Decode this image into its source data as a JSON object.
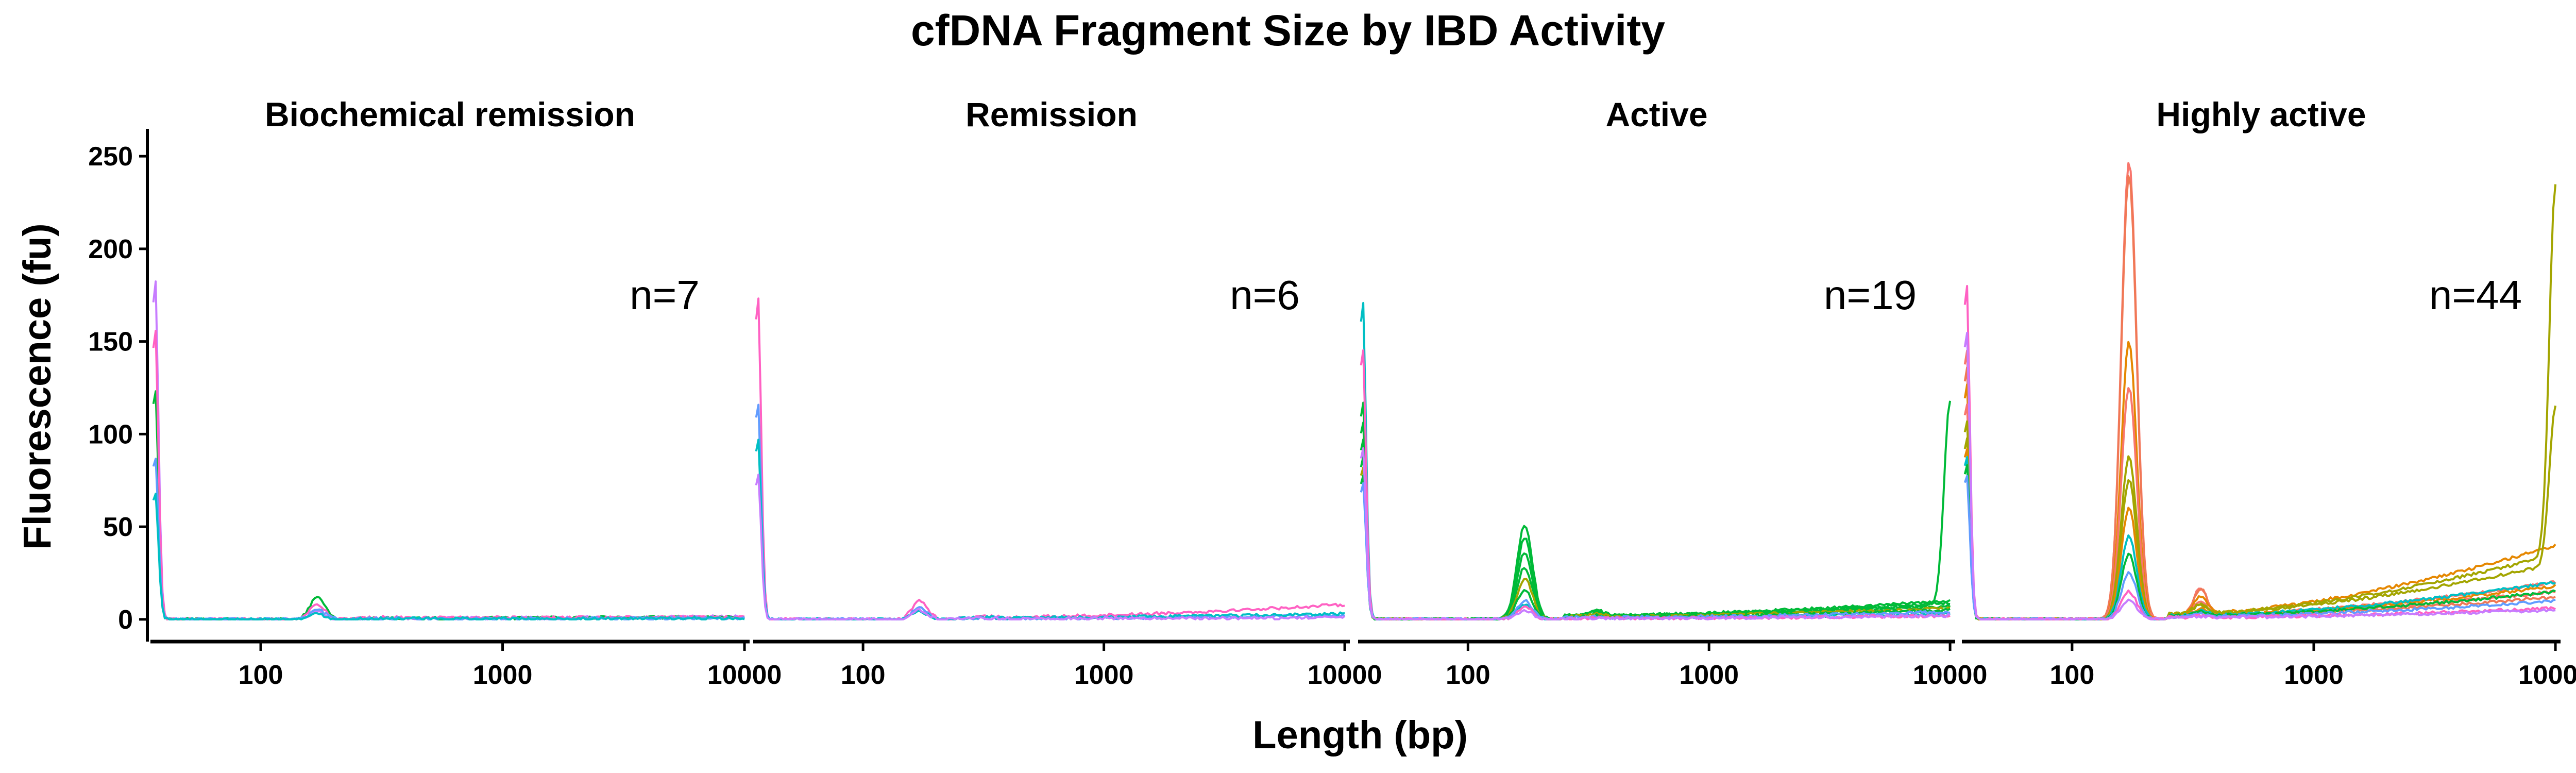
{
  "chart_data": {
    "type": "line",
    "title": "cfDNA Fragment Size by IBD Activity",
    "xlabel": "Length (bp)",
    "ylabel": "Fluorescence (fu)",
    "x_scale": "log10",
    "xlim": [
      35,
      10500
    ],
    "ylim": [
      -12,
      262
    ],
    "x_ticks": [
      100,
      1000,
      10000
    ],
    "x_tick_labels": [
      "100",
      "1000",
      "10000"
    ],
    "y_ticks": [
      0,
      50,
      100,
      150,
      200,
      250
    ],
    "y_tick_labels": [
      "0",
      "50",
      "100",
      "150",
      "200",
      "250"
    ],
    "grid": false,
    "colors": {
      "red": "#F8766D",
      "orange": "#E58700",
      "olive": "#A3A500",
      "green": "#00BA38",
      "teal": "#00BF7D",
      "cyan": "#00BFC4",
      "blue": "#619CFF",
      "purple": "#C77CFF",
      "pink": "#FF61C3",
      "salmon": "#F07855"
    },
    "panels": [
      {
        "title": "Biochemical remission",
        "n_label": "n=7",
        "series": [
          {
            "color": "#C77CFF",
            "marker_peak": 187,
            "nuc_peak": 4,
            "tail_start": 0.5,
            "tail_end": 1.5,
            "upper_peak": 0
          },
          {
            "color": "#00BA38",
            "marker_peak": 127,
            "nuc_peak": 12,
            "tail_start": 0.5,
            "tail_end": 1.5,
            "upper_peak": 0
          },
          {
            "color": "#FF61C3",
            "marker_peak": 160,
            "nuc_peak": 8,
            "tail_start": 0.8,
            "tail_end": 1.2,
            "upper_peak": 0
          },
          {
            "color": "#619CFF",
            "marker_peak": 90,
            "nuc_peak": 5,
            "tail_start": 0.3,
            "tail_end": 0.6,
            "upper_peak": 0
          },
          {
            "color": "#00BFC4",
            "marker_peak": 70,
            "nuc_peak": 3,
            "tail_start": 0.3,
            "tail_end": 0.5,
            "upper_peak": 0
          }
        ]
      },
      {
        "title": "Remission",
        "n_label": "n=6",
        "series": [
          {
            "color": "#FF61C3",
            "marker_peak": 178,
            "nuc_peak": 10,
            "tail_start": 1,
            "tail_end": 8,
            "upper_peak": 0
          },
          {
            "color": "#619CFF",
            "marker_peak": 120,
            "nuc_peak": 6,
            "tail_start": 0.5,
            "tail_end": 2,
            "upper_peak": 0
          },
          {
            "color": "#00BFC4",
            "marker_peak": 100,
            "nuc_peak": 4,
            "tail_start": 0.8,
            "tail_end": 3,
            "upper_peak": 0
          },
          {
            "color": "#C77CFF",
            "marker_peak": 80,
            "nuc_peak": 5,
            "tail_start": 0.4,
            "tail_end": 1,
            "upper_peak": 0
          }
        ]
      },
      {
        "title": "Active",
        "n_label": "n=19",
        "series": [
          {
            "color": "#00BFC4",
            "marker_peak": 176,
            "nuc_peak": 8,
            "tail_start": 1,
            "tail_end": 3,
            "upper_peak": 0
          },
          {
            "color": "#00BA38",
            "marker_peak": 120,
            "nuc_peak": 51,
            "tail_start": 2,
            "tail_end": 8,
            "upper_peak": 110
          },
          {
            "color": "#00BA38",
            "marker_peak": 110,
            "nuc_peak": 44,
            "tail_start": 2,
            "tail_end": 10,
            "upper_peak": 0
          },
          {
            "color": "#00BA38",
            "marker_peak": 100,
            "nuc_peak": 36,
            "tail_start": 2,
            "tail_end": 9,
            "upper_peak": 0
          },
          {
            "color": "#00BA38",
            "marker_peak": 90,
            "nuc_peak": 28,
            "tail_start": 1.5,
            "tail_end": 7,
            "upper_peak": 0
          },
          {
            "color": "#A3A500",
            "marker_peak": 85,
            "nuc_peak": 22,
            "tail_start": 1.5,
            "tail_end": 6,
            "upper_peak": 0
          },
          {
            "color": "#00BA38",
            "marker_peak": 80,
            "nuc_peak": 16,
            "tail_start": 1,
            "tail_end": 5,
            "upper_peak": 0
          },
          {
            "color": "#619CFF",
            "marker_peak": 75,
            "nuc_peak": 10,
            "tail_start": 1,
            "tail_end": 4,
            "upper_peak": 0
          },
          {
            "color": "#FF61C3",
            "marker_peak": 150,
            "nuc_peak": 7,
            "tail_start": 0.5,
            "tail_end": 2,
            "upper_peak": 0
          },
          {
            "color": "#C77CFF",
            "marker_peak": 95,
            "nuc_peak": 5,
            "tail_start": 0.5,
            "tail_end": 2,
            "upper_peak": 0
          }
        ]
      },
      {
        "title": "Highly active",
        "n_label": "n=44",
        "series": [
          {
            "color": "#F8766D",
            "marker_peak": 150,
            "nuc_peak": 247,
            "tail_start": 2,
            "tail_end": 15,
            "upper_peak": 0
          },
          {
            "color": "#F07855",
            "marker_peak": 140,
            "nuc_peak": 240,
            "tail_start": 2,
            "tail_end": 12,
            "upper_peak": 0
          },
          {
            "color": "#E58700",
            "marker_peak": 130,
            "nuc_peak": 150,
            "tail_start": 3,
            "tail_end": 40,
            "upper_peak": 0
          },
          {
            "color": "#F8766D",
            "marker_peak": 120,
            "nuc_peak": 125,
            "tail_start": 2,
            "tail_end": 20,
            "upper_peak": 0
          },
          {
            "color": "#A3A500",
            "marker_peak": 110,
            "nuc_peak": 88,
            "tail_start": 3,
            "tail_end": 35,
            "upper_peak": 200
          },
          {
            "color": "#A3A500",
            "marker_peak": 100,
            "nuc_peak": 75,
            "tail_start": 3,
            "tail_end": 30,
            "upper_peak": 85
          },
          {
            "color": "#E58700",
            "marker_peak": 95,
            "nuc_peak": 60,
            "tail_start": 2,
            "tail_end": 18,
            "upper_peak": 0
          },
          {
            "color": "#00BFC4",
            "marker_peak": 90,
            "nuc_peak": 45,
            "tail_start": 2,
            "tail_end": 20,
            "upper_peak": 0
          },
          {
            "color": "#00BA38",
            "marker_peak": 85,
            "nuc_peak": 35,
            "tail_start": 2,
            "tail_end": 15,
            "upper_peak": 0
          },
          {
            "color": "#619CFF",
            "marker_peak": 80,
            "nuc_peak": 25,
            "tail_start": 1.5,
            "tail_end": 10,
            "upper_peak": 0
          },
          {
            "color": "#FF61C3",
            "marker_peak": 185,
            "nuc_peak": 15,
            "tail_start": 1,
            "tail_end": 6,
            "upper_peak": 0
          },
          {
            "color": "#C77CFF",
            "marker_peak": 160,
            "nuc_peak": 10,
            "tail_start": 1,
            "tail_end": 5,
            "upper_peak": 0
          }
        ]
      }
    ]
  }
}
